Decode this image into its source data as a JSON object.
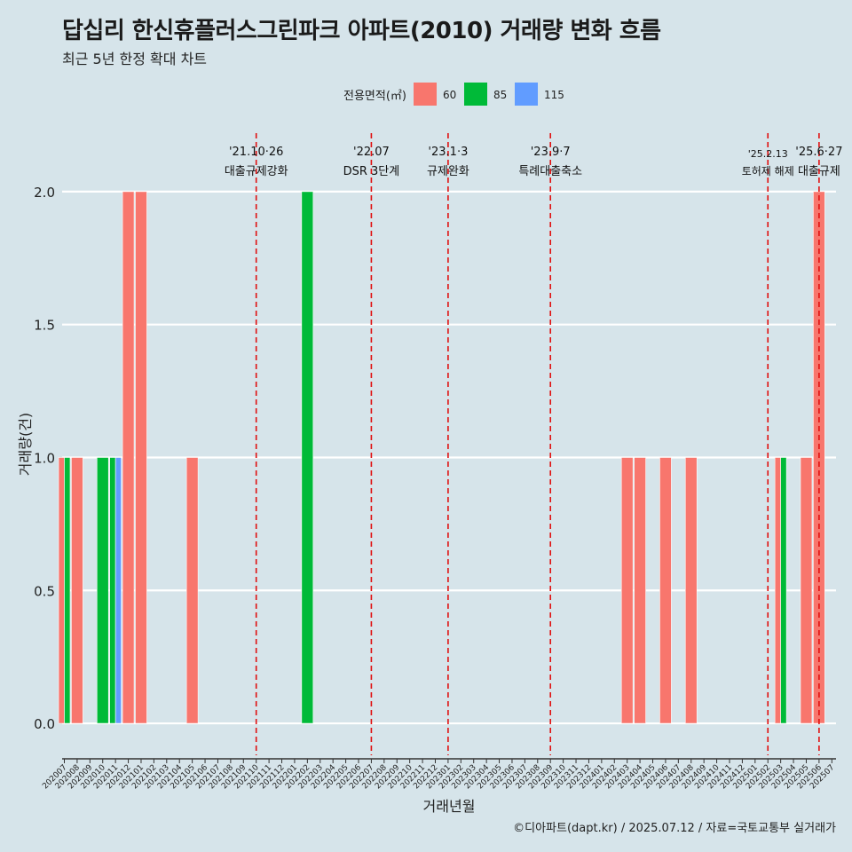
{
  "title": "답십리 한신휴플러스그린파크 아파트(2010) 거래량 변화 흐름",
  "subtitle": "최근 5년 한정 확대 차트",
  "caption": "©디아파트(dapt.kr) / 2025.07.12 / 자료=국토교통부 실거래가",
  "legend_title": "전용면적(㎡)",
  "colors": {
    "background": "#d6e4ea",
    "grid": "#ffffff",
    "event_line": "#e01010",
    "series": {
      "60": "#f8766d",
      "85": "#00ba38",
      "115": "#619cff"
    }
  },
  "chart_data": {
    "type": "bar",
    "xlabel": "거래년월",
    "ylabel": "거래량(건)",
    "ylim": [
      -0.12,
      2.22
    ],
    "yticks": [
      "0.0",
      "0.5",
      "1.0",
      "1.5",
      "2.0"
    ],
    "ytick_values": [
      0,
      0.5,
      1.0,
      1.5,
      2.0
    ],
    "grid": true,
    "legend_position": "top",
    "categories": [
      "202007",
      "202008",
      "202009",
      "202010",
      "202011",
      "202012",
      "202101",
      "202102",
      "202103",
      "202104",
      "202105",
      "202106",
      "202107",
      "202108",
      "202109",
      "202110",
      "202111",
      "202112",
      "202201",
      "202202",
      "202203",
      "202204",
      "202205",
      "202206",
      "202207",
      "202208",
      "202209",
      "202210",
      "202211",
      "202212",
      "202301",
      "202302",
      "202303",
      "202304",
      "202305",
      "202306",
      "202307",
      "202308",
      "202309",
      "202310",
      "202311",
      "202312",
      "202401",
      "202402",
      "202403",
      "202404",
      "202405",
      "202406",
      "202407",
      "202408",
      "202409",
      "202410",
      "202411",
      "202412",
      "202501",
      "202502",
      "202503",
      "202504",
      "202505",
      "202506",
      "202507"
    ],
    "series": [
      {
        "name": "60",
        "values": [
          1,
          1,
          0,
          0,
          0,
          2,
          2,
          0,
          0,
          0,
          1,
          0,
          0,
          0,
          0,
          0,
          0,
          0,
          0,
          0,
          0,
          0,
          0,
          0,
          0,
          0,
          0,
          0,
          0,
          0,
          0,
          0,
          0,
          0,
          0,
          0,
          0,
          0,
          0,
          0,
          0,
          0,
          0,
          0,
          1,
          1,
          0,
          1,
          0,
          1,
          0,
          0,
          0,
          0,
          0,
          0,
          1,
          0,
          1,
          2,
          0
        ]
      },
      {
        "name": "85",
        "values": [
          1,
          0,
          0,
          1,
          1,
          0,
          0,
          0,
          0,
          0,
          0,
          0,
          0,
          0,
          0,
          0,
          0,
          0,
          0,
          2,
          0,
          0,
          0,
          0,
          0,
          0,
          0,
          0,
          0,
          0,
          0,
          0,
          0,
          0,
          0,
          0,
          0,
          0,
          0,
          0,
          0,
          0,
          0,
          0,
          0,
          0,
          0,
          0,
          0,
          0,
          0,
          0,
          0,
          0,
          0,
          0,
          1,
          0,
          0,
          0,
          0
        ]
      },
      {
        "name": "115",
        "values": [
          0,
          0,
          0,
          0,
          1,
          0,
          0,
          0,
          0,
          0,
          0,
          0,
          0,
          0,
          0,
          0,
          0,
          0,
          0,
          0,
          0,
          0,
          0,
          0,
          0,
          0,
          0,
          0,
          0,
          0,
          0,
          0,
          0,
          0,
          0,
          0,
          0,
          0,
          0,
          0,
          0,
          0,
          0,
          0,
          0,
          0,
          0,
          0,
          0,
          0,
          0,
          0,
          0,
          0,
          0,
          0,
          0,
          0,
          0,
          0,
          0
        ]
      }
    ],
    "events": [
      {
        "date": "'21.10·26",
        "label": "대출규제강화",
        "month": "202110"
      },
      {
        "date": "'22.07",
        "label": "DSR 3단계",
        "month": "202207"
      },
      {
        "date": "'23.1·3",
        "label": "규제완화",
        "month": "202301"
      },
      {
        "date": "'23.9·7",
        "label": "특례대출축소",
        "month": "202309"
      },
      {
        "date": "'25.2.13",
        "label": "토허제 해제",
        "month": "202502"
      },
      {
        "date": "'25.6·27",
        "label": "대출규제",
        "month": "202506"
      }
    ]
  }
}
